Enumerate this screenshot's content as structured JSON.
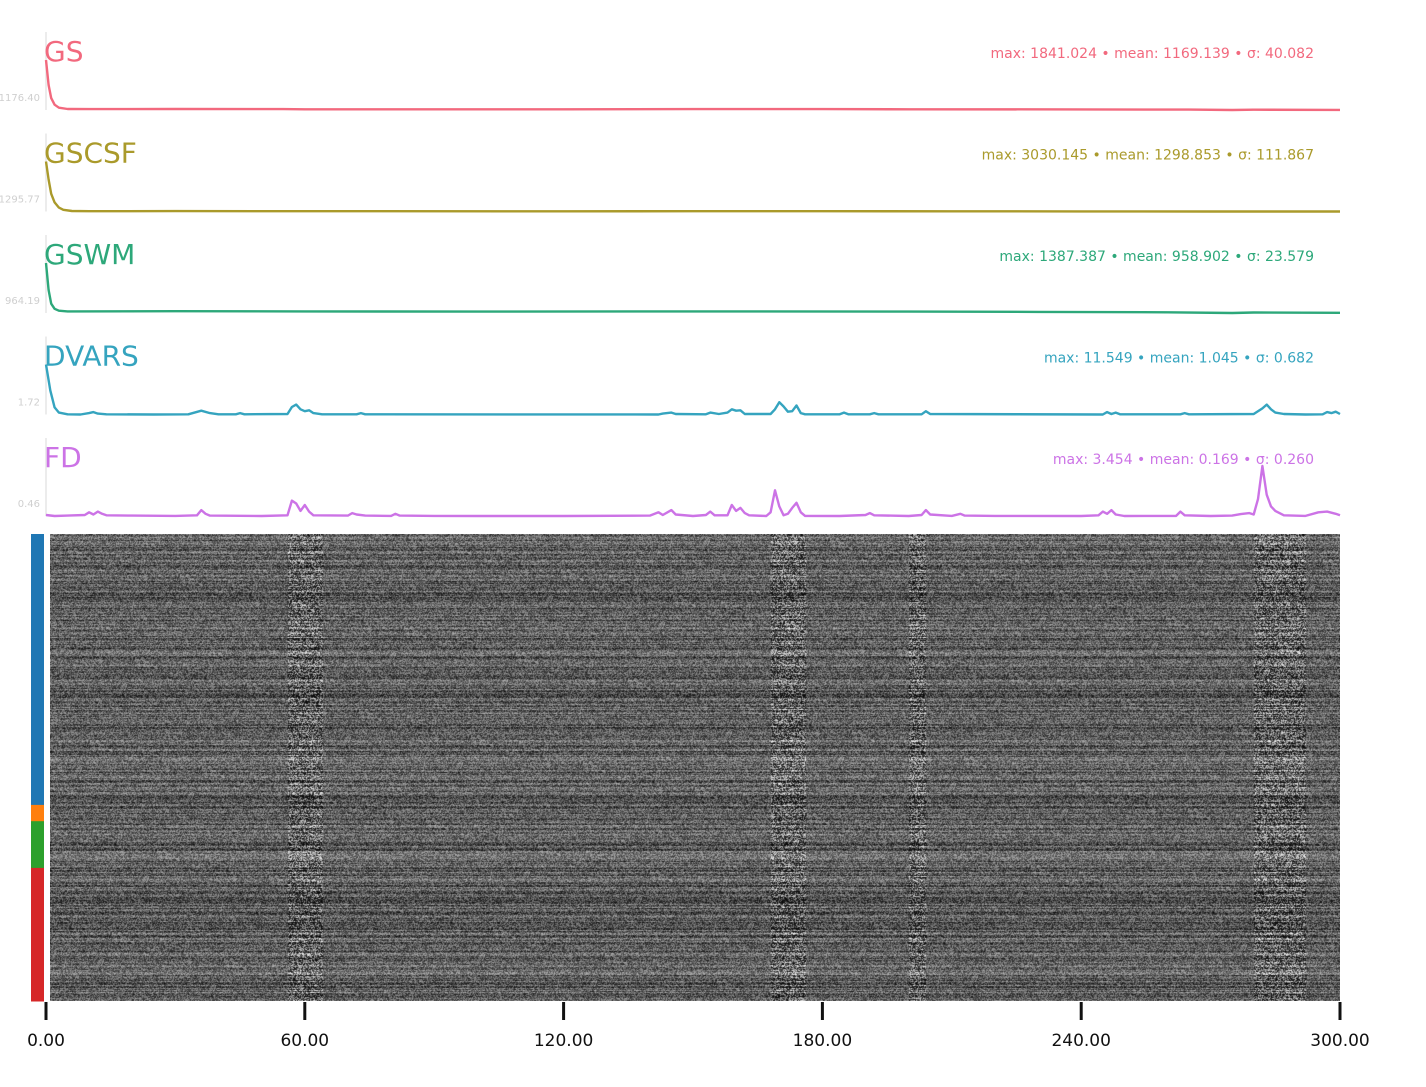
{
  "chart_data": {
    "type": "line",
    "xlim": [
      0,
      300
    ],
    "x_ticks": [
      "0.00",
      "60.00",
      "120.00",
      "180.00",
      "240.00",
      "300.00"
    ],
    "x_tick_values": [
      0,
      60,
      120,
      180,
      240,
      300
    ],
    "xlabel": "",
    "series": [
      {
        "name": "GS",
        "color": "#f2697e",
        "stats": "max: 1841.024 • mean: 1169.139 • σ: 40.082",
        "baseline_label": "1176.40",
        "points": [
          [
            0,
            1841
          ],
          [
            0.6,
            1500
          ],
          [
            1.2,
            1320
          ],
          [
            2,
            1230
          ],
          [
            3,
            1190
          ],
          [
            5,
            1172
          ],
          [
            10,
            1170
          ],
          [
            30,
            1172
          ],
          [
            55,
            1170
          ],
          [
            60,
            1168
          ],
          [
            120,
            1168
          ],
          [
            150,
            1170
          ],
          [
            180,
            1170
          ],
          [
            200,
            1168
          ],
          [
            240,
            1166
          ],
          [
            265,
            1164
          ],
          [
            275,
            1158
          ],
          [
            280,
            1162
          ],
          [
            300,
            1160
          ]
        ]
      },
      {
        "name": "GSCSF",
        "color": "#aa9a2b",
        "stats": "max: 3030.145 • mean: 1298.853 • σ: 111.867",
        "baseline_label": "1295.77",
        "points": [
          [
            0,
            3030
          ],
          [
            0.6,
            2400
          ],
          [
            1.2,
            1900
          ],
          [
            2,
            1600
          ],
          [
            3,
            1420
          ],
          [
            4,
            1340
          ],
          [
            6,
            1300
          ],
          [
            10,
            1292
          ],
          [
            30,
            1295
          ],
          [
            60,
            1292
          ],
          [
            120,
            1290
          ],
          [
            150,
            1292
          ],
          [
            180,
            1292
          ],
          [
            210,
            1290
          ],
          [
            240,
            1287
          ],
          [
            270,
            1283
          ],
          [
            300,
            1282
          ]
        ]
      },
      {
        "name": "GSWM",
        "color": "#2da87a",
        "stats": "max: 1387.387 • mean: 958.902 • σ: 23.579",
        "baseline_label": "964.19",
        "points": [
          [
            0,
            1387
          ],
          [
            0.6,
            1150
          ],
          [
            1.2,
            1030
          ],
          [
            2,
            985
          ],
          [
            3,
            968
          ],
          [
            5,
            962
          ],
          [
            30,
            964
          ],
          [
            60,
            962
          ],
          [
            100,
            960
          ],
          [
            160,
            962
          ],
          [
            200,
            960
          ],
          [
            230,
            958
          ],
          [
            260,
            954
          ],
          [
            275,
            948
          ],
          [
            280,
            952
          ],
          [
            300,
            950
          ]
        ]
      },
      {
        "name": "DVARS",
        "color": "#35a4bf",
        "stats": "max: 11.549 • mean: 1.045 • σ: 0.682",
        "baseline_label": "1.72",
        "points": [
          [
            0,
            11.5
          ],
          [
            1,
            6
          ],
          [
            2,
            2.4
          ],
          [
            3,
            1.3
          ],
          [
            5,
            0.95
          ],
          [
            8,
            0.9
          ],
          [
            10,
            1.2
          ],
          [
            11,
            1.4
          ],
          [
            12,
            1.1
          ],
          [
            14,
            0.95
          ],
          [
            25,
            0.9
          ],
          [
            33,
            0.95
          ],
          [
            36,
            1.7
          ],
          [
            38,
            1.2
          ],
          [
            40,
            0.95
          ],
          [
            44,
            0.95
          ],
          [
            45,
            1.2
          ],
          [
            46,
            0.95
          ],
          [
            56,
            1.0
          ],
          [
            57,
            2.5
          ],
          [
            58,
            3.0
          ],
          [
            59,
            2.0
          ],
          [
            60,
            1.6
          ],
          [
            61,
            1.8
          ],
          [
            62,
            1.2
          ],
          [
            64,
            0.95
          ],
          [
            72,
            0.95
          ],
          [
            73,
            1.2
          ],
          [
            74,
            0.95
          ],
          [
            142,
            0.9
          ],
          [
            143,
            1.1
          ],
          [
            145,
            1.3
          ],
          [
            146,
            1.0
          ],
          [
            153,
            0.95
          ],
          [
            154,
            1.3
          ],
          [
            156,
            1.0
          ],
          [
            158,
            1.3
          ],
          [
            159,
            2.0
          ],
          [
            160,
            1.7
          ],
          [
            161,
            1.8
          ],
          [
            162,
            1.0
          ],
          [
            168,
            1.0
          ],
          [
            169,
            2.0
          ],
          [
            170,
            3.5
          ],
          [
            171,
            2.6
          ],
          [
            172,
            1.5
          ],
          [
            173,
            1.6
          ],
          [
            174,
            2.8
          ],
          [
            175,
            1.2
          ],
          [
            176,
            0.95
          ],
          [
            184,
            0.95
          ],
          [
            185,
            1.3
          ],
          [
            186,
            0.95
          ],
          [
            191,
            0.95
          ],
          [
            192,
            1.2
          ],
          [
            193,
            0.95
          ],
          [
            203,
            0.95
          ],
          [
            204,
            1.6
          ],
          [
            205,
            1.0
          ],
          [
            245,
            0.9
          ],
          [
            246,
            1.4
          ],
          [
            247,
            1.0
          ],
          [
            248,
            1.3
          ],
          [
            249,
            0.95
          ],
          [
            263,
            0.95
          ],
          [
            264,
            1.2
          ],
          [
            265,
            0.95
          ],
          [
            280,
            1.0
          ],
          [
            282,
            2.2
          ],
          [
            283,
            3.0
          ],
          [
            284,
            2.0
          ],
          [
            285,
            1.3
          ],
          [
            287,
            1.0
          ],
          [
            292,
            0.9
          ],
          [
            296,
            0.95
          ],
          [
            297,
            1.4
          ],
          [
            298,
            1.2
          ],
          [
            299,
            1.5
          ],
          [
            300,
            1.0
          ]
        ]
      },
      {
        "name": "FD",
        "color": "#cc73e6",
        "stats": "max: 3.454 • mean: 0.169 • σ: 0.260",
        "baseline_label": "0.46",
        "points": [
          [
            0,
            0.12
          ],
          [
            2,
            0.05
          ],
          [
            5,
            0.08
          ],
          [
            9,
            0.12
          ],
          [
            10,
            0.3
          ],
          [
            11,
            0.15
          ],
          [
            12,
            0.35
          ],
          [
            13,
            0.2
          ],
          [
            14,
            0.1
          ],
          [
            20,
            0.08
          ],
          [
            30,
            0.06
          ],
          [
            35,
            0.1
          ],
          [
            36,
            0.45
          ],
          [
            37,
            0.2
          ],
          [
            38,
            0.08
          ],
          [
            50,
            0.05
          ],
          [
            56,
            0.1
          ],
          [
            57,
            1.1
          ],
          [
            58,
            0.9
          ],
          [
            59,
            0.4
          ],
          [
            60,
            0.8
          ],
          [
            61,
            0.35
          ],
          [
            62,
            0.1
          ],
          [
            70,
            0.08
          ],
          [
            71,
            0.25
          ],
          [
            72,
            0.15
          ],
          [
            74,
            0.08
          ],
          [
            80,
            0.06
          ],
          [
            81,
            0.2
          ],
          [
            82,
            0.08
          ],
          [
            90,
            0.06
          ],
          [
            100,
            0.05
          ],
          [
            120,
            0.05
          ],
          [
            140,
            0.08
          ],
          [
            142,
            0.3
          ],
          [
            143,
            0.12
          ],
          [
            145,
            0.45
          ],
          [
            146,
            0.15
          ],
          [
            150,
            0.05
          ],
          [
            153,
            0.12
          ],
          [
            154,
            0.35
          ],
          [
            155,
            0.1
          ],
          [
            158,
            0.1
          ],
          [
            159,
            0.8
          ],
          [
            160,
            0.4
          ],
          [
            161,
            0.6
          ],
          [
            162,
            0.25
          ],
          [
            163,
            0.1
          ],
          [
            167,
            0.05
          ],
          [
            168,
            0.3
          ],
          [
            169,
            1.8
          ],
          [
            170,
            0.7
          ],
          [
            171,
            0.1
          ],
          [
            172,
            0.2
          ],
          [
            173,
            0.6
          ],
          [
            174,
            0.95
          ],
          [
            175,
            0.3
          ],
          [
            176,
            0.06
          ],
          [
            184,
            0.05
          ],
          [
            190,
            0.12
          ],
          [
            191,
            0.25
          ],
          [
            192,
            0.1
          ],
          [
            200,
            0.05
          ],
          [
            203,
            0.12
          ],
          [
            204,
            0.45
          ],
          [
            205,
            0.15
          ],
          [
            210,
            0.06
          ],
          [
            212,
            0.2
          ],
          [
            213,
            0.08
          ],
          [
            220,
            0.06
          ],
          [
            240,
            0.05
          ],
          [
            244,
            0.1
          ],
          [
            245,
            0.35
          ],
          [
            246,
            0.2
          ],
          [
            247,
            0.45
          ],
          [
            248,
            0.15
          ],
          [
            250,
            0.05
          ],
          [
            262,
            0.06
          ],
          [
            263,
            0.35
          ],
          [
            264,
            0.1
          ],
          [
            270,
            0.05
          ],
          [
            275,
            0.08
          ],
          [
            277,
            0.18
          ],
          [
            279,
            0.25
          ],
          [
            280,
            0.15
          ],
          [
            281,
            1.2
          ],
          [
            282,
            3.45
          ],
          [
            283,
            1.5
          ],
          [
            284,
            0.7
          ],
          [
            285,
            0.4
          ],
          [
            287,
            0.1
          ],
          [
            292,
            0.06
          ],
          [
            295,
            0.3
          ],
          [
            297,
            0.35
          ],
          [
            299,
            0.2
          ],
          [
            300,
            0.1
          ]
        ]
      }
    ],
    "carpet": {
      "segments": [
        {
          "color": "#1f77b4",
          "fraction": 0.58
        },
        {
          "color": "#ff7f0e",
          "fraction": 0.035
        },
        {
          "color": "#2ca02c",
          "fraction": 0.1
        },
        {
          "color": "#d62728",
          "fraction": 0.285
        }
      ],
      "bright_bands": [
        [
          56,
          64
        ],
        [
          168,
          176
        ],
        [
          200,
          204
        ],
        [
          280,
          292
        ]
      ]
    },
    "grid": false
  }
}
